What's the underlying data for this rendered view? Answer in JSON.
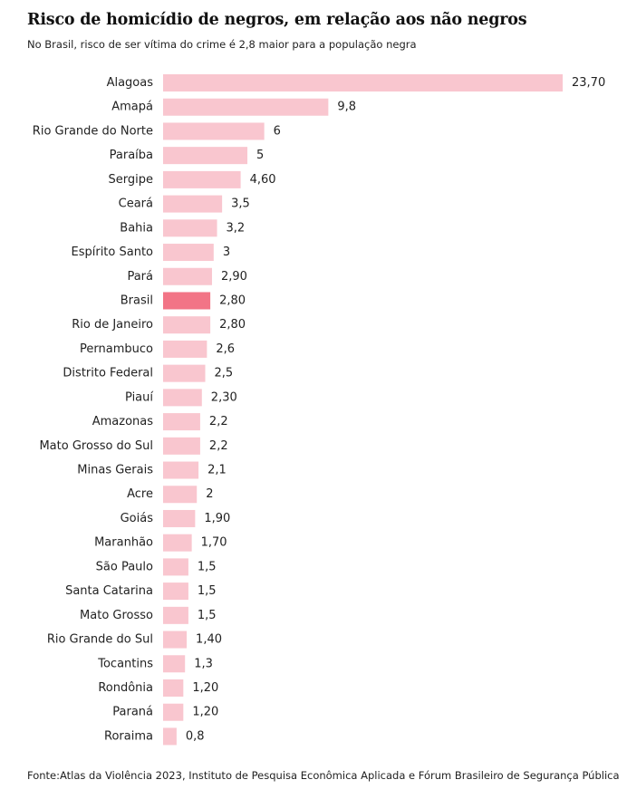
{
  "chart_data": {
    "type": "bar",
    "orientation": "horizontal",
    "title": "Risco de homicídio de negros, em relação aos não negros",
    "subtitle": "No Brasil, risco de ser vítima do crime é 2,8 maior para a população negra",
    "categories": [
      "Alagoas",
      "Amapá",
      "Rio Grande do Norte",
      "Paraíba",
      "Sergipe",
      "Ceará",
      "Bahia",
      "Espírito Santo",
      "Pará",
      "Brasil",
      "Rio de Janeiro",
      "Pernambuco",
      "Distrito Federal",
      "Piauí",
      "Amazonas",
      "Mato Grosso do Sul",
      "Minas Gerais",
      "Acre",
      "Goiás",
      "Maranhão",
      "São Paulo",
      "Santa Catarina",
      "Mato Grosso",
      "Rio Grande do Sul",
      "Tocantins",
      "Rondônia",
      "Paraná",
      "Roraima"
    ],
    "values": [
      23.7,
      9.8,
      6,
      5,
      4.6,
      3.5,
      3.2,
      3,
      2.9,
      2.8,
      2.8,
      2.6,
      2.5,
      2.3,
      2.2,
      2.2,
      2.1,
      2,
      1.9,
      1.7,
      1.5,
      1.5,
      1.5,
      1.4,
      1.3,
      1.2,
      1.2,
      0.8
    ],
    "value_labels": [
      "23,70",
      "9,8",
      "6",
      "5",
      "4,60",
      "3,5",
      "3,2",
      "3",
      "2,90",
      "2,80",
      "2,80",
      "2,6",
      "2,5",
      "2,30",
      "2,2",
      "2,2",
      "2,1",
      "2",
      "1,90",
      "1,70",
      "1,5",
      "1,5",
      "1,5",
      "1,40",
      "1,3",
      "1,20",
      "1,20",
      "0,8"
    ],
    "highlight": "Brasil",
    "xlim": [
      0,
      23.7
    ],
    "grid": false,
    "colors": {
      "bar": "#f9c6cf",
      "highlight": "#f27486"
    }
  },
  "source": "Fonte:Atlas da Violência 2023, Instituto de Pesquisa Econômica Aplicada e Fórum Brasileiro de Segurança Pública"
}
